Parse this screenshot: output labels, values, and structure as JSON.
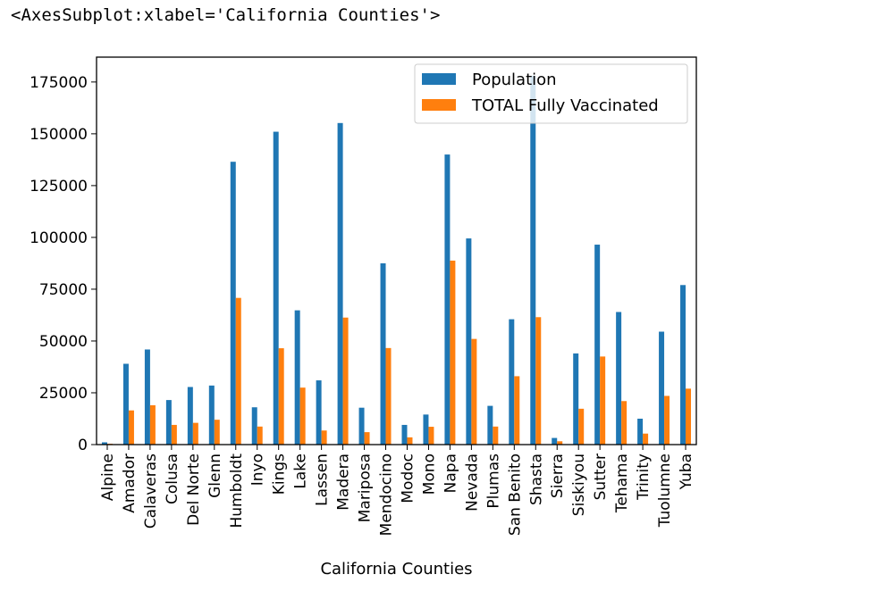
{
  "output_repr": "<AxesSubplot:xlabel='California Counties'>",
  "colors": {
    "population": "#1f77b4",
    "vaccinated": "#ff7f0e"
  },
  "chart_data": {
    "type": "bar",
    "xlabel": "California Counties",
    "ylabel": "",
    "ylim": [
      0,
      187000
    ],
    "yticks": [
      0,
      25000,
      50000,
      75000,
      100000,
      125000,
      150000,
      175000
    ],
    "grid": false,
    "legend_position": "top-right",
    "categories": [
      "Alpine",
      "Amador",
      "Calaveras",
      "Colusa",
      "Del Norte",
      "Glenn",
      "Humboldt",
      "Inyo",
      "Kings",
      "Lake",
      "Lassen",
      "Madera",
      "Mariposa",
      "Mendocino",
      "Modoc",
      "Mono",
      "Napa",
      "Nevada",
      "Plumas",
      "San Benito",
      "Shasta",
      "Sierra",
      "Siskiyou",
      "Sutter",
      "Tehama",
      "Trinity",
      "Tuolumne",
      "Yuba"
    ],
    "series": [
      {
        "name": "Population",
        "values": [
          1100,
          39000,
          45900,
          21500,
          27800,
          28500,
          136500,
          18000,
          151000,
          64800,
          31000,
          155200,
          17800,
          87500,
          9500,
          14500,
          140000,
          99500,
          18700,
          60500,
          178000,
          3200,
          44000,
          96500,
          64000,
          12500,
          54500,
          77000
        ]
      },
      {
        "name": "TOTAL Fully Vaccinated",
        "values": [
          400,
          16500,
          19000,
          9500,
          10500,
          12000,
          70800,
          8700,
          46500,
          27500,
          6800,
          61300,
          6000,
          46600,
          3500,
          8600,
          88800,
          51000,
          8700,
          33000,
          61500,
          1600,
          17300,
          42500,
          21000,
          5300,
          23500,
          27000
        ]
      }
    ]
  }
}
